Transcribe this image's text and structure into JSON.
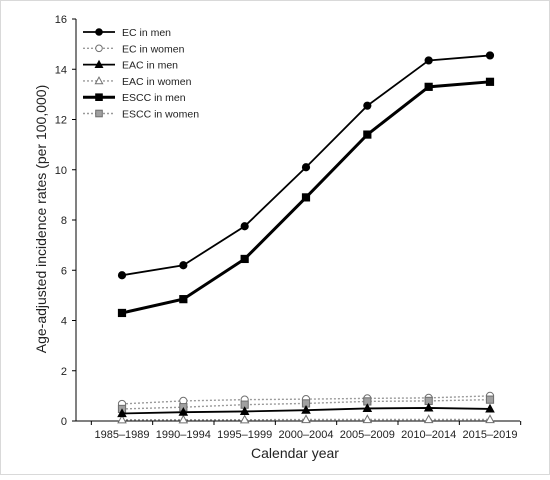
{
  "chart_data": {
    "type": "line",
    "title": "",
    "xlabel": "Calendar year",
    "ylabel": "Age-adjusted incidence rates (per 100,000)",
    "ylim": [
      0,
      16
    ],
    "yticks": [
      0,
      2,
      4,
      6,
      8,
      10,
      12,
      14,
      16
    ],
    "grid": false,
    "legend_position": "top-left",
    "categories": [
      "1985–1989",
      "1990–1994",
      "1995–1999",
      "2000–2004",
      "2005–2009",
      "2010–2014",
      "2015–2019"
    ],
    "series": [
      {
        "name": "EC in men",
        "values": [
          5.8,
          6.2,
          7.75,
          10.1,
          12.55,
          14.35,
          14.55
        ],
        "marker": "circle",
        "marker_fill": "#000000",
        "line_color": "#000000",
        "line_style": "solid",
        "line_weight": "normal"
      },
      {
        "name": "EC in women",
        "values": [
          0.68,
          0.8,
          0.85,
          0.87,
          0.9,
          0.92,
          1.0
        ],
        "marker": "circle",
        "marker_fill": "#ffffff",
        "line_color": "#9a9a9a",
        "line_style": "dotted",
        "line_weight": "normal"
      },
      {
        "name": "EAC in men",
        "values": [
          0.3,
          0.35,
          0.38,
          0.43,
          0.5,
          0.52,
          0.48
        ],
        "marker": "triangle",
        "marker_fill": "#000000",
        "line_color": "#000000",
        "line_style": "solid",
        "line_weight": "normal"
      },
      {
        "name": "EAC in women",
        "values": [
          0.05,
          0.05,
          0.05,
          0.06,
          0.06,
          0.06,
          0.06
        ],
        "marker": "triangle",
        "marker_fill": "#ffffff",
        "line_color": "#9a9a9a",
        "line_style": "dotted",
        "line_weight": "normal"
      },
      {
        "name": "ESCC in men",
        "values": [
          4.3,
          4.85,
          6.45,
          8.9,
          11.4,
          13.3,
          13.5
        ],
        "marker": "square",
        "marker_fill": "#000000",
        "line_color": "#000000",
        "line_style": "solid",
        "line_weight": "thick"
      },
      {
        "name": "ESCC in women",
        "values": [
          0.48,
          0.55,
          0.65,
          0.7,
          0.78,
          0.8,
          0.85
        ],
        "marker": "square",
        "marker_fill": "#a0a0a0",
        "line_color": "#9a9a9a",
        "line_style": "dotted",
        "line_weight": "normal"
      }
    ]
  }
}
